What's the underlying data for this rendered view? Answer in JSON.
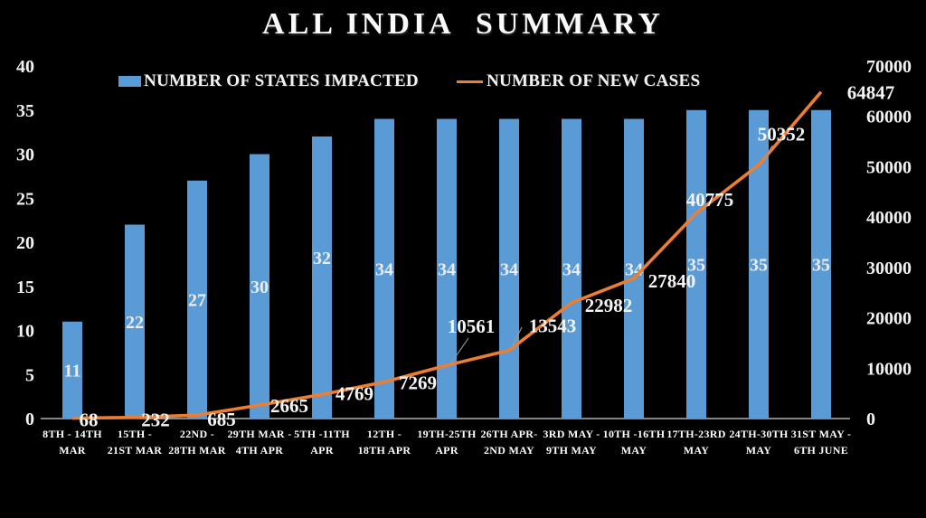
{
  "title": "ALL INDIA  SUMMARY",
  "background": "#000000",
  "legend": {
    "position": "top",
    "items": [
      {
        "label": "NUMBER OF STATES IMPACTED",
        "swatch": "square",
        "color": "#5B9BD5"
      },
      {
        "label": "NUMBER OF NEW CASES",
        "swatch": "line",
        "color": "#ED7D31"
      }
    ]
  },
  "chart_data": {
    "type": "combo (bar + line)",
    "title": "ALL INDIA SUMMARY",
    "background": "#000000",
    "grid": false,
    "legend_position": "top",
    "categories": [
      "8TH - 14TH MAR",
      "15TH - 21ST MAR",
      "22ND - 28TH MAR",
      "29TH MAR - 4TH APR",
      "5TH -11TH APR",
      "12TH - 18TH APR",
      "19TH-25TH APR",
      "26TH APR- 2ND MAY",
      "3RD MAY - 9TH MAY",
      "10TH -16TH MAY",
      "17TH-23RD MAY",
      "24TH-30TH MAY",
      "31ST MAY - 6TH JUNE"
    ],
    "category_lines": [
      [
        "8TH - 14TH",
        "MAR"
      ],
      [
        "15TH -",
        "21ST MAR"
      ],
      [
        "22ND -",
        "28TH MAR"
      ],
      [
        "29TH MAR -",
        "4TH APR"
      ],
      [
        "5TH -11TH",
        "APR"
      ],
      [
        "12TH -",
        "18TH APR"
      ],
      [
        "19TH-25TH",
        "APR"
      ],
      [
        "26TH APR-",
        "2ND MAY"
      ],
      [
        "3RD MAY -",
        "9TH MAY"
      ],
      [
        "10TH -16TH",
        "MAY"
      ],
      [
        "17TH-23RD",
        "MAY"
      ],
      [
        "24TH-30TH",
        "MAY"
      ],
      [
        "31ST MAY -",
        "6TH JUNE"
      ]
    ],
    "series": [
      {
        "name": "NUMBER OF STATES IMPACTED",
        "type": "bar",
        "axis": "left",
        "color": "#5B9BD5",
        "values": [
          11,
          22,
          27,
          30,
          32,
          34,
          34,
          34,
          34,
          34,
          35,
          35,
          35
        ]
      },
      {
        "name": "NUMBER OF NEW CASES",
        "type": "line",
        "axis": "right",
        "color": "#ED7D31",
        "values": [
          68,
          232,
          685,
          2665,
          4769,
          7269,
          10561,
          13543,
          22982,
          27840,
          40775,
          50352,
          64847
        ]
      }
    ],
    "left_axis": {
      "min": 0,
      "max": 40,
      "step": 5,
      "ticks": [
        "0",
        "5",
        "10",
        "15",
        "20",
        "25",
        "30",
        "35",
        "40"
      ]
    },
    "right_axis": {
      "min": 0,
      "max": 70000,
      "step": 10000,
      "ticks": [
        "0",
        "10000",
        "20000",
        "30000",
        "40000",
        "50000",
        "60000",
        "70000"
      ]
    },
    "data_labels": true
  },
  "colors": {
    "bar": "#5B9BD5",
    "line": "#ED7D31",
    "axis_line": "#d4d4d4",
    "leader_line": "#9a9a9a",
    "text": "#f2f2f2"
  }
}
